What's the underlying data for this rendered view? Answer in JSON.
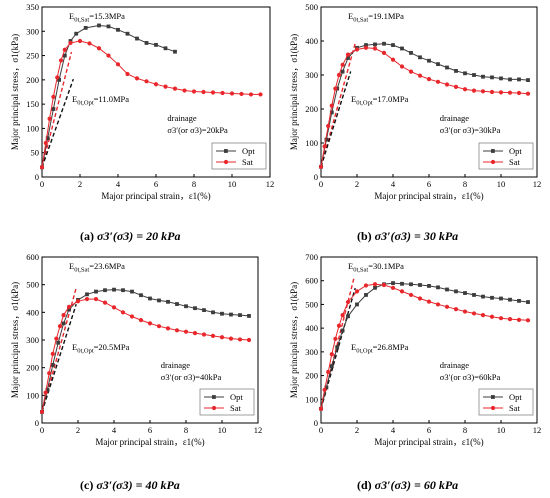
{
  "chart_data": [
    {
      "type": "line",
      "caption": {
        "label": "(a)",
        "text": "σ3′(σ3) = 20 kPa"
      },
      "xlabel": "Major principal strain，ε1(%)",
      "ylabel": "Major principal stress，σ1(kPa)",
      "xlim": [
        0,
        12
      ],
      "ylim": [
        0,
        350
      ],
      "xticks": [
        0,
        2,
        4,
        6,
        8,
        10,
        12
      ],
      "yticks": [
        0,
        50,
        100,
        150,
        200,
        250,
        300,
        350
      ],
      "annotations": {
        "e_sat": "E0t,Sat=15.3MPa",
        "e_opt": "E0t,Opt=11.0MPa",
        "drainage": "drainage",
        "confining": "σ3′(or σ3)=20kPa"
      },
      "tangents": [
        {
          "slope_kpa_per_pct": 153,
          "x_end": 1.55,
          "color": "#e8262b"
        },
        {
          "slope_kpa_per_pct": 110,
          "x_end": 1.65,
          "color": "#111111"
        }
      ],
      "series": [
        {
          "name": "Opt",
          "color": "#3c3c3c",
          "marker": "square",
          "x": [
            0,
            0.3,
            0.6,
            0.9,
            1.2,
            1.5,
            1.8,
            2.3,
            3.0,
            3.5,
            4.0,
            4.5,
            5.0,
            5.5,
            6.0,
            6.5,
            7.0
          ],
          "y": [
            20,
            80,
            140,
            200,
            250,
            280,
            295,
            307,
            312,
            310,
            303,
            295,
            285,
            276,
            272,
            265,
            258
          ]
        },
        {
          "name": "Sat",
          "color": "#e8262b",
          "marker": "circle",
          "x": [
            0,
            0.2,
            0.4,
            0.6,
            0.8,
            1.0,
            1.2,
            1.5,
            2.0,
            2.5,
            3.0,
            3.5,
            4.0,
            4.5,
            5.0,
            5.5,
            6.0,
            6.5,
            7.0,
            7.5,
            8.0,
            8.5,
            9.0,
            9.5,
            10.0,
            10.5,
            11.0,
            11.5
          ],
          "y": [
            20,
            70,
            120,
            165,
            205,
            240,
            262,
            276,
            280,
            275,
            265,
            250,
            232,
            212,
            203,
            197,
            191,
            186,
            182,
            178,
            176,
            175,
            174,
            173,
            172,
            171,
            170,
            170
          ]
        }
      ]
    },
    {
      "type": "line",
      "caption": {
        "label": "(b)",
        "text": "σ3′(σ3) = 30 kPa"
      },
      "xlabel": "Major principal strain，ε1(%)",
      "ylabel": "Major principal stress，σ1(kPa)",
      "xlim": [
        0,
        12
      ],
      "ylim": [
        0,
        500
      ],
      "xticks": [
        0,
        2,
        4,
        6,
        8,
        10,
        12
      ],
      "yticks": [
        0,
        100,
        200,
        300,
        400,
        500
      ],
      "annotations": {
        "e_sat": "E0t,Sat=19.1MPa",
        "e_opt": "E0t,Opt=17.0MPa",
        "drainage": "drainage",
        "confining": "σ3′(or σ3)=30kPa"
      },
      "tangents": [
        {
          "slope_kpa_per_pct": 191,
          "x_end": 1.9,
          "color": "#e8262b"
        },
        {
          "slope_kpa_per_pct": 170,
          "x_end": 1.65,
          "color": "#111111"
        }
      ],
      "series": [
        {
          "name": "Opt",
          "color": "#3c3c3c",
          "marker": "square",
          "x": [
            0,
            0.3,
            0.6,
            0.9,
            1.2,
            1.5,
            2.0,
            2.5,
            3.0,
            3.5,
            4.0,
            4.5,
            5.0,
            5.5,
            6.0,
            6.5,
            7.0,
            7.5,
            8.0,
            8.5,
            9.0,
            9.5,
            10.0,
            10.5,
            11.0,
            11.5
          ],
          "y": [
            30,
            110,
            190,
            260,
            310,
            350,
            380,
            388,
            390,
            392,
            388,
            378,
            365,
            352,
            342,
            332,
            322,
            312,
            305,
            300,
            295,
            293,
            290,
            287,
            287,
            285
          ]
        },
        {
          "name": "Sat",
          "color": "#e8262b",
          "marker": "circle",
          "x": [
            0,
            0.2,
            0.4,
            0.6,
            0.8,
            1.0,
            1.2,
            1.5,
            2.0,
            2.5,
            3.0,
            3.5,
            4.0,
            4.5,
            5.0,
            5.5,
            6.0,
            6.5,
            7.0,
            7.5,
            8.0,
            8.5,
            9.0,
            9.5,
            10.0,
            10.5,
            11.0,
            11.5
          ],
          "y": [
            30,
            90,
            150,
            210,
            260,
            300,
            330,
            360,
            375,
            380,
            378,
            365,
            345,
            325,
            310,
            298,
            288,
            280,
            272,
            265,
            258,
            254,
            252,
            250,
            249,
            248,
            247,
            245
          ]
        }
      ]
    },
    {
      "type": "line",
      "caption": {
        "label": "(c)",
        "text": "σ3′(σ3) = 40 kPa"
      },
      "xlabel": "Major principal strain，ε1(%)",
      "ylabel": "Major principal stress，σ1(kPa)",
      "xlim": [
        0,
        12
      ],
      "ylim": [
        0,
        600
      ],
      "xticks": [
        0,
        2,
        4,
        6,
        8,
        10,
        12
      ],
      "yticks": [
        0,
        100,
        200,
        300,
        400,
        500,
        600
      ],
      "annotations": {
        "e_sat": "E0t,Sat=23.6MPa",
        "e_opt": "E0t,Opt=20.5MPa",
        "drainage": "drainage",
        "confining": "σ3′(or σ3)=40kPa"
      },
      "tangents": [
        {
          "slope_kpa_per_pct": 236,
          "x_end": 1.9,
          "color": "#e8262b"
        },
        {
          "slope_kpa_per_pct": 205,
          "x_end": 1.9,
          "color": "#111111"
        }
      ],
      "series": [
        {
          "name": "Opt",
          "color": "#3c3c3c",
          "marker": "square",
          "x": [
            0,
            0.3,
            0.6,
            0.9,
            1.2,
            1.5,
            2.0,
            2.5,
            3.0,
            3.5,
            4.0,
            4.5,
            5.0,
            5.5,
            6.0,
            6.5,
            7.0,
            7.5,
            8.0,
            8.5,
            9.0,
            9.5,
            10.0,
            10.5,
            11.0,
            11.5
          ],
          "y": [
            40,
            120,
            210,
            290,
            360,
            410,
            445,
            465,
            475,
            480,
            482,
            480,
            475,
            462,
            450,
            443,
            438,
            430,
            422,
            415,
            408,
            400,
            395,
            392,
            390,
            387
          ]
        },
        {
          "name": "Sat",
          "color": "#e8262b",
          "marker": "circle",
          "x": [
            0,
            0.2,
            0.4,
            0.6,
            0.8,
            1.0,
            1.2,
            1.5,
            2.0,
            2.5,
            3.0,
            3.5,
            4.0,
            4.5,
            5.0,
            5.5,
            6.0,
            6.5,
            7.0,
            7.5,
            8.0,
            8.5,
            9.0,
            9.5,
            10.0,
            10.5,
            11.0,
            11.5
          ],
          "y": [
            40,
            110,
            180,
            250,
            305,
            350,
            390,
            420,
            440,
            448,
            448,
            435,
            418,
            400,
            385,
            372,
            360,
            350,
            342,
            335,
            330,
            325,
            320,
            315,
            310,
            305,
            302,
            300
          ]
        }
      ]
    },
    {
      "type": "line",
      "caption": {
        "label": "(d)",
        "text": "σ3′(σ3) = 60 kPa"
      },
      "xlabel": "Major principal strain，ε1(%)",
      "ylabel": "Major principal stress，σ1(kPa)",
      "xlim": [
        0,
        12
      ],
      "ylim": [
        0,
        700
      ],
      "xticks": [
        0,
        2,
        4,
        6,
        8,
        10,
        12
      ],
      "yticks": [
        0,
        100,
        200,
        300,
        400,
        500,
        600,
        700
      ],
      "annotations": {
        "e_sat": "E0t,Sat=30.1MPa",
        "e_opt": "E0t,Opt=26.8MPa",
        "drainage": "drainage",
        "confining": "σ3′(or σ3)=60kPa"
      },
      "tangents": [
        {
          "slope_kpa_per_pct": 301,
          "x_end": 1.85,
          "color": "#e8262b"
        },
        {
          "slope_kpa_per_pct": 268,
          "x_end": 1.9,
          "color": "#111111"
        }
      ],
      "series": [
        {
          "name": "Opt",
          "color": "#3c3c3c",
          "marker": "square",
          "x": [
            0,
            0.3,
            0.6,
            0.9,
            1.2,
            1.5,
            2.0,
            2.5,
            3.0,
            3.5,
            4.0,
            4.5,
            5.0,
            5.5,
            6.0,
            6.5,
            7.0,
            7.5,
            8.0,
            8.5,
            9.0,
            9.5,
            10.0,
            10.5,
            11.0,
            11.5
          ],
          "y": [
            60,
            150,
            240,
            320,
            390,
            450,
            500,
            540,
            570,
            585,
            590,
            587,
            585,
            582,
            578,
            572,
            563,
            555,
            548,
            540,
            533,
            528,
            525,
            520,
            515,
            510
          ]
        },
        {
          "name": "Sat",
          "color": "#e8262b",
          "marker": "circle",
          "x": [
            0,
            0.2,
            0.4,
            0.6,
            0.8,
            1.0,
            1.2,
            1.5,
            2.0,
            2.5,
            3.0,
            3.5,
            4.0,
            4.5,
            5.0,
            5.5,
            6.0,
            6.5,
            7.0,
            7.5,
            8.0,
            8.5,
            9.0,
            9.5,
            10.0,
            10.5,
            11.0,
            11.5
          ],
          "y": [
            60,
            140,
            215,
            290,
            355,
            410,
            455,
            510,
            555,
            580,
            585,
            582,
            570,
            555,
            540,
            525,
            512,
            500,
            490,
            480,
            470,
            462,
            455,
            448,
            442,
            438,
            435,
            433
          ]
        }
      ]
    }
  ]
}
